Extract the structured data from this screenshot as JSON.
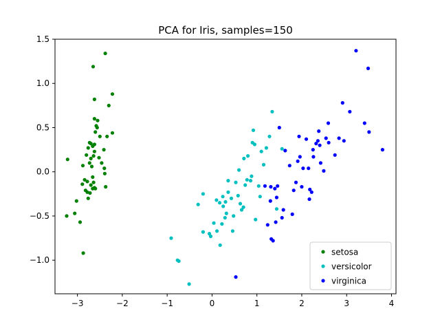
{
  "chart_data": {
    "type": "scatter",
    "title": "PCA for Iris, samples=150",
    "xlabel": "",
    "ylabel": "",
    "xlim": [
      -3.5,
      4.1
    ],
    "ylim": [
      -1.38,
      1.5
    ],
    "xticks": [
      -3,
      -2,
      -1,
      0,
      1,
      2,
      3,
      4
    ],
    "xtick_labels": [
      "−3",
      "−2",
      "−1",
      "0",
      "1",
      "2",
      "3",
      "4"
    ],
    "yticks": [
      -1.0,
      -0.5,
      0.0,
      0.5,
      1.0,
      1.5
    ],
    "ytick_labels": [
      "−1.0",
      "−0.5",
      "0.0",
      "0.5",
      "1.0",
      "1.5"
    ],
    "grid": false,
    "legend_position": "bottom-right",
    "series": [
      {
        "name": "setosa",
        "color": "#008000",
        "points": [
          [
            -3.22,
            0.14
          ],
          [
            -3.24,
            -0.5
          ],
          [
            -3.02,
            -0.33
          ],
          [
            -3.06,
            -0.47
          ],
          [
            -2.94,
            -0.57
          ],
          [
            -2.87,
            -0.92
          ],
          [
            -2.89,
            -0.14
          ],
          [
            -2.88,
            0.07
          ],
          [
            -2.84,
            -0.09
          ],
          [
            -2.82,
            -0.21
          ],
          [
            -2.78,
            -0.23
          ],
          [
            -2.76,
            -0.3
          ],
          [
            -2.78,
            -0.11
          ],
          [
            -2.72,
            -0.24
          ],
          [
            -2.7,
            -0.15
          ],
          [
            -2.76,
            0.27
          ],
          [
            -2.73,
            0.33
          ],
          [
            -2.7,
            0.32
          ],
          [
            -2.66,
            0.29
          ],
          [
            -2.7,
            0.15
          ],
          [
            -2.8,
            0.19
          ],
          [
            -2.73,
            0.1
          ],
          [
            -2.68,
            0.06
          ],
          [
            -2.66,
            -0.06
          ],
          [
            -2.64,
            -0.12
          ],
          [
            -2.62,
            -0.18
          ],
          [
            -2.66,
            -0.19
          ],
          [
            -2.6,
            -0.19
          ],
          [
            -2.64,
            0.18
          ],
          [
            -2.62,
            0.23
          ],
          [
            -2.62,
            0.31
          ],
          [
            -2.6,
            0.45
          ],
          [
            -2.62,
            0.6
          ],
          [
            -2.58,
            0.52
          ],
          [
            -2.56,
            0.5
          ],
          [
            -2.55,
            0.58
          ],
          [
            -2.5,
            0.4
          ],
          [
            -2.52,
            0.16
          ],
          [
            -2.46,
            0.1
          ],
          [
            -2.4,
            0.04
          ],
          [
            -2.39,
            -0.02
          ],
          [
            -2.37,
            -0.17
          ],
          [
            -2.41,
            0.25
          ],
          [
            -2.34,
            0.4
          ],
          [
            -2.3,
            0.75
          ],
          [
            -2.22,
            0.88
          ],
          [
            -2.22,
            0.44
          ],
          [
            -2.38,
            1.34
          ],
          [
            -2.65,
            1.19
          ],
          [
            -2.62,
            0.82
          ]
        ]
      },
      {
        "name": "versicolor",
        "color": "#00bfbf",
        "points": [
          [
            -0.91,
            -0.75
          ],
          [
            -0.77,
            -1.0
          ],
          [
            -0.74,
            -1.01
          ],
          [
            -0.51,
            -1.27
          ],
          [
            -0.31,
            -0.37
          ],
          [
            -0.2,
            -0.25
          ],
          [
            -0.2,
            -0.68
          ],
          [
            -0.06,
            -0.7
          ],
          [
            -0.03,
            -0.73
          ],
          [
            0.04,
            -0.58
          ],
          [
            0.1,
            -0.32
          ],
          [
            0.11,
            -0.67
          ],
          [
            0.17,
            -0.35
          ],
          [
            0.18,
            -0.83
          ],
          [
            0.22,
            -0.59
          ],
          [
            0.24,
            -0.28
          ],
          [
            0.25,
            -0.39
          ],
          [
            0.29,
            -0.52
          ],
          [
            0.3,
            -0.34
          ],
          [
            0.32,
            -0.47
          ],
          [
            0.36,
            -0.1
          ],
          [
            0.36,
            -0.23
          ],
          [
            0.43,
            -0.3
          ],
          [
            0.46,
            -0.67
          ],
          [
            0.48,
            -0.5
          ],
          [
            0.53,
            -0.12
          ],
          [
            0.58,
            -0.27
          ],
          [
            0.6,
            0.02
          ],
          [
            0.63,
            -0.36
          ],
          [
            0.66,
            -0.43
          ],
          [
            0.7,
            -0.4
          ],
          [
            0.71,
            0.15
          ],
          [
            0.74,
            -0.15
          ],
          [
            0.78,
            -0.09
          ],
          [
            0.8,
            0.18
          ],
          [
            0.86,
            -0.1
          ],
          [
            0.88,
            -0.05
          ],
          [
            0.9,
            0.33
          ],
          [
            0.92,
            0.47
          ],
          [
            0.95,
            0.31
          ],
          [
            0.97,
            -0.54
          ],
          [
            1.04,
            -0.16
          ],
          [
            1.07,
            -0.28
          ],
          [
            1.1,
            0.23
          ],
          [
            1.15,
            0.08
          ],
          [
            1.21,
            0.27
          ],
          [
            1.28,
            0.4
          ],
          [
            1.34,
            0.68
          ],
          [
            1.44,
            -0.42
          ],
          [
            1.56,
            0.26
          ]
        ]
      },
      {
        "name": "virginica",
        "color": "#0000ff",
        "points": [
          [
            0.53,
            -1.19
          ],
          [
            1.18,
            -0.16
          ],
          [
            1.24,
            -0.6
          ],
          [
            1.3,
            -0.33
          ],
          [
            1.31,
            -0.17
          ],
          [
            1.32,
            -0.76
          ],
          [
            1.36,
            -0.78
          ],
          [
            1.4,
            -0.19
          ],
          [
            1.42,
            -0.57
          ],
          [
            1.44,
            -0.29
          ],
          [
            1.46,
            -0.16
          ],
          [
            1.5,
            0.5
          ],
          [
            1.56,
            -0.52
          ],
          [
            1.59,
            -0.43
          ],
          [
            1.63,
            0.24
          ],
          [
            1.73,
            0.07
          ],
          [
            1.79,
            -0.48
          ],
          [
            1.82,
            -0.21
          ],
          [
            1.87,
            -0.12
          ],
          [
            1.91,
            0.12
          ],
          [
            1.94,
            0.4
          ],
          [
            1.96,
            0.17
          ],
          [
            2.0,
            -0.17
          ],
          [
            2.03,
            0.04
          ],
          [
            2.1,
            0.37
          ],
          [
            2.15,
            0.04
          ],
          [
            2.18,
            -0.2
          ],
          [
            2.22,
            -0.23
          ],
          [
            2.26,
            0.17
          ],
          [
            2.32,
            0.32
          ],
          [
            2.36,
            0.35
          ],
          [
            2.38,
            0.46
          ],
          [
            2.4,
            0.3
          ],
          [
            2.42,
            0.1
          ],
          [
            2.49,
            0.01
          ],
          [
            2.54,
            0.38
          ],
          [
            2.59,
            0.55
          ],
          [
            2.6,
            0.33
          ],
          [
            2.74,
            0.19
          ],
          [
            2.83,
            0.38
          ],
          [
            2.91,
            0.78
          ],
          [
            2.94,
            0.35
          ],
          [
            3.07,
            0.68
          ],
          [
            3.21,
            1.37
          ],
          [
            3.4,
            0.55
          ],
          [
            3.5,
            0.45
          ],
          [
            3.48,
            1.17
          ],
          [
            3.8,
            0.25
          ],
          [
            2.25,
            0.25
          ],
          [
            2.17,
            -0.31
          ]
        ]
      }
    ]
  }
}
